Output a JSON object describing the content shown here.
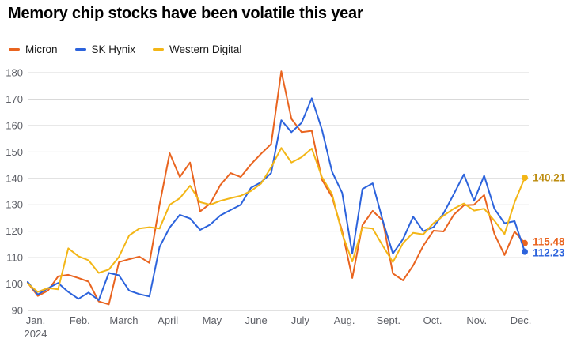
{
  "title": "Memory chip stocks have been volatile this year",
  "chart_data": {
    "type": "line",
    "title": "Memory chip stocks have been volatile this year",
    "xlabel": "",
    "ylabel": "",
    "grid": true,
    "legend_position": "top-left",
    "x_axis": {
      "tick_labels": [
        "Jan.",
        "Feb.",
        "March",
        "April",
        "May",
        "June",
        "July",
        "Aug.",
        "Sept.",
        "Oct.",
        "Nov.",
        "Dec."
      ],
      "year": "2024"
    },
    "y_axis": {
      "ticks": [
        90,
        100,
        110,
        120,
        130,
        140,
        150,
        160,
        170,
        180
      ],
      "range": [
        90,
        180
      ]
    },
    "sampling": "weekly",
    "series": [
      {
        "name": "Micron",
        "color": "#e9641f",
        "label_color": "#e9641f",
        "end_label": "115.48",
        "values": [
          100.5,
          95.5,
          97.5,
          102.9,
          103.5,
          102.3,
          100.9,
          93.4,
          92.3,
          108.3,
          109.4,
          110.4,
          108.0,
          130.0,
          149.5,
          140.5,
          146.0,
          127.5,
          130.5,
          137.5,
          142.0,
          140.5,
          145.3,
          149.3,
          153.0,
          180.5,
          162.5,
          157.5,
          158.0,
          139.5,
          133.0,
          120.0,
          102.3,
          122.3,
          127.7,
          124.0,
          104.0,
          101.4,
          107.0,
          114.5,
          120.2,
          119.9,
          126.2,
          129.8,
          130.0,
          133.7,
          119.0,
          111.0,
          119.8,
          115.48
        ]
      },
      {
        "name": "SK Hynix",
        "color": "#2c63dc",
        "label_color": "#2c63dc",
        "end_label": "112.23",
        "values": [
          100.8,
          96.0,
          98.4,
          100.4,
          97.0,
          94.4,
          96.8,
          93.9,
          104.2,
          103.3,
          97.5,
          96.2,
          95.3,
          114.0,
          121.4,
          126.2,
          124.8,
          120.5,
          122.5,
          126.0,
          128.0,
          130.0,
          136.4,
          138.5,
          142.0,
          162.0,
          157.5,
          161.0,
          170.3,
          158.5,
          142.5,
          134.5,
          111.5,
          136.0,
          138.1,
          124.0,
          111.5,
          117.0,
          125.5,
          120.0,
          121.5,
          126.8,
          134.0,
          141.5,
          131.5,
          141.0,
          128.5,
          123.0,
          123.8,
          112.23
        ]
      },
      {
        "name": "Western Digital",
        "color": "#f3b616",
        "label_color": "#bd8c0f",
        "end_label": "140.21",
        "values": [
          100.2,
          97.0,
          98.5,
          98.0,
          113.5,
          110.5,
          109.0,
          104.2,
          105.5,
          110.3,
          118.4,
          121.0,
          121.5,
          121.0,
          130.0,
          132.5,
          137.2,
          131.0,
          130.0,
          131.5,
          132.5,
          133.4,
          135.2,
          138.0,
          144.2,
          151.5,
          146.0,
          148.0,
          151.3,
          140.5,
          134.0,
          119.0,
          108.5,
          121.4,
          121.0,
          114.5,
          108.3,
          115.5,
          119.4,
          118.8,
          123.0,
          125.9,
          128.5,
          130.5,
          127.8,
          128.5,
          124.0,
          118.9,
          131.0,
          140.21
        ]
      }
    ],
    "colors": {
      "grid_line": "#d9d9d9",
      "baseline": "#c3c3c3",
      "tick_text": "#5d5f66",
      "title_text": "#000000"
    }
  }
}
